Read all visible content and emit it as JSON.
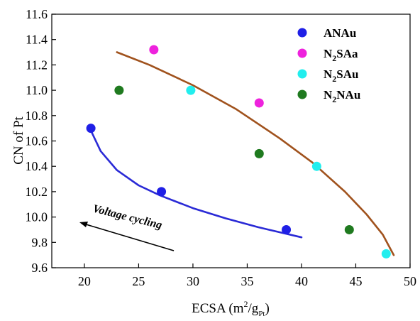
{
  "chart_data": {
    "type": "scatter",
    "xlabel": "ECSA (m",
    "xlabel_sup": "2",
    "xlabel_mid": "/g",
    "xlabel_sub": "Pt",
    "xlabel_end": ")",
    "ylabel": "CN of Pt",
    "xlim": [
      17,
      50
    ],
    "ylim": [
      9.6,
      11.6
    ],
    "xticks": [
      20,
      25,
      30,
      35,
      40,
      45,
      50
    ],
    "yticks": [
      9.6,
      9.8,
      10.0,
      10.2,
      10.4,
      10.6,
      10.8,
      11.0,
      11.2,
      11.4,
      11.6
    ],
    "grid": false,
    "legend_position": "top-right",
    "series": [
      {
        "name": "ANAu",
        "name_parts": [
          "ANAu"
        ],
        "color": "#1f1fe6",
        "points": [
          [
            20.6,
            10.7
          ],
          [
            27.1,
            10.2
          ],
          [
            38.6,
            9.9
          ]
        ]
      },
      {
        "name": "N2SAa",
        "name_parts": [
          "N",
          "2",
          "SAa"
        ],
        "color": "#ee22dd",
        "points": [
          [
            26.4,
            11.32
          ],
          [
            36.1,
            10.9
          ]
        ]
      },
      {
        "name": "N2SAu",
        "name_parts": [
          "N",
          "2",
          "SAu"
        ],
        "color": "#22eeee",
        "points": [
          [
            29.8,
            11.0
          ],
          [
            41.4,
            10.4
          ],
          [
            47.8,
            9.71
          ]
        ]
      },
      {
        "name": "N2NAu",
        "name_parts": [
          "N",
          "2",
          "NAu"
        ],
        "color": "#1f7a1f",
        "points": [
          [
            23.2,
            11.0
          ],
          [
            36.1,
            10.5
          ],
          [
            44.4,
            9.9
          ]
        ]
      }
    ],
    "trendlines": [
      {
        "color": "#2a2ad6",
        "points": [
          [
            20.5,
            10.7
          ],
          [
            21.5,
            10.52
          ],
          [
            23,
            10.37
          ],
          [
            25,
            10.25
          ],
          [
            27,
            10.17
          ],
          [
            30,
            10.07
          ],
          [
            33,
            9.99
          ],
          [
            36,
            9.92
          ],
          [
            40,
            9.84
          ]
        ]
      },
      {
        "color": "#a0521d",
        "points": [
          [
            23,
            11.3
          ],
          [
            26,
            11.2
          ],
          [
            30,
            11.04
          ],
          [
            34,
            10.85
          ],
          [
            38,
            10.62
          ],
          [
            41,
            10.43
          ],
          [
            44,
            10.2
          ],
          [
            46,
            10.02
          ],
          [
            47.5,
            9.86
          ],
          [
            48.5,
            9.7
          ]
        ]
      }
    ],
    "annotation": {
      "text": "Voltage cycling"
    }
  }
}
